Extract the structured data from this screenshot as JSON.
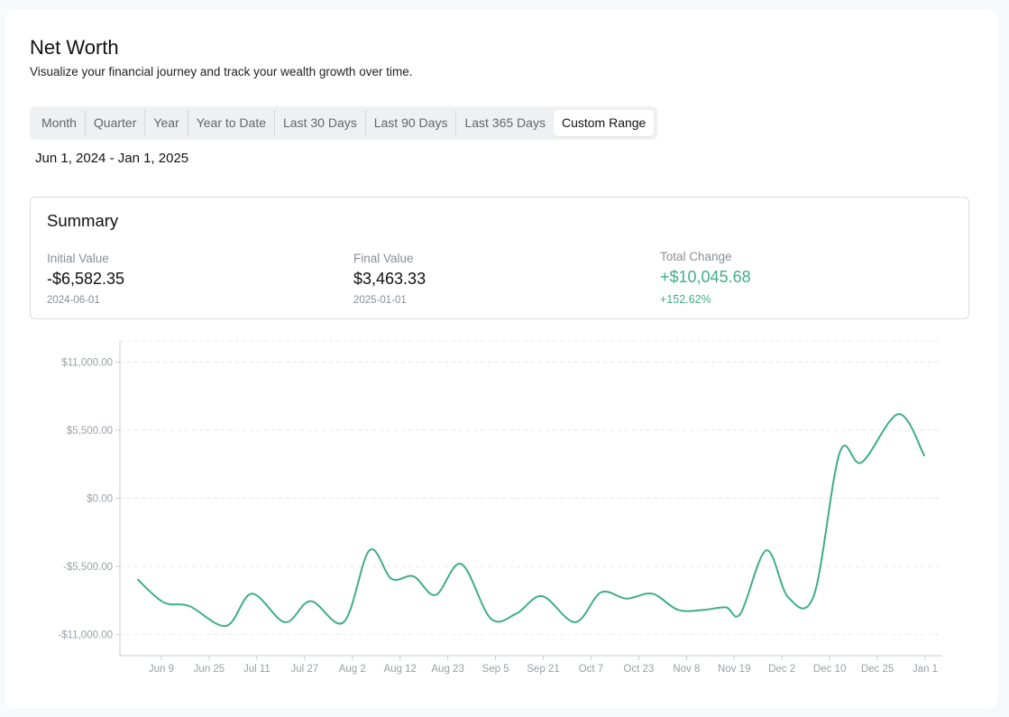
{
  "header": {
    "title": "Net Worth",
    "subtitle": "Visualize your financial journey and track your wealth growth over time."
  },
  "tabs": [
    {
      "label": "Month",
      "active": false
    },
    {
      "label": "Quarter",
      "active": false
    },
    {
      "label": "Year",
      "active": false
    },
    {
      "label": "Year to Date",
      "active": false
    },
    {
      "label": "Last 30 Days",
      "active": false
    },
    {
      "label": "Last 90 Days",
      "active": false
    },
    {
      "label": "Last 365 Days",
      "active": false
    },
    {
      "label": "Custom Range",
      "active": true
    }
  ],
  "date_range": "Jun 1, 2024 - Jan 1, 2025",
  "summary": {
    "title": "Summary",
    "initial": {
      "label": "Initial Value",
      "value": "-$6,582.35",
      "date": "2024-06-01"
    },
    "final": {
      "label": "Final Value",
      "value": "$3,463.33",
      "date": "2025-01-01"
    },
    "change": {
      "label": "Total Change",
      "value": "+$10,045.68",
      "percent": "+152.62%"
    }
  },
  "colors": {
    "accent": "#3fae86"
  },
  "chart_data": {
    "type": "line",
    "yticks": [
      11000,
      5500,
      0,
      -5500,
      -11000
    ],
    "ytick_labels": [
      "$11,000.00",
      "$5,500.00",
      "$0.00",
      "-$5,500.00",
      "-$11,000.00"
    ],
    "ylim": [
      -12700,
      12700
    ],
    "xtick_labels": [
      "Jun 9",
      "Jun 25",
      "Jul 11",
      "Jul 27",
      "Aug 2",
      "Aug 12",
      "Aug 23",
      "Sep 5",
      "Sep 21",
      "Oct 7",
      "Oct 23",
      "Nov 8",
      "Nov 19",
      "Dec 2",
      "Dec 10",
      "Dec 25",
      "Jan 1"
    ],
    "grid": true,
    "series": [
      {
        "values": [
          -6582,
          -8400,
          -8700,
          -10300,
          -7700,
          -10000,
          -8300,
          -10000,
          -4200,
          -6500,
          -6300,
          -7800,
          -5300,
          -9700,
          -9300,
          -7900,
          -10000,
          -7600,
          -8100,
          -7700,
          -9000,
          -9000,
          -8800,
          -9300,
          -4200,
          -8000,
          -7800,
          3700,
          2900,
          6800,
          3463
        ],
        "dates": [
          "2024-06-01",
          "2024-06-08",
          "2024-06-15",
          "2024-06-25",
          "2024-07-02",
          "2024-07-11",
          "2024-07-18",
          "2024-07-27",
          "2024-08-03",
          "2024-08-09",
          "2024-08-15",
          "2024-08-21",
          "2024-08-28",
          "2024-09-05",
          "2024-09-12",
          "2024-09-19",
          "2024-09-28",
          "2024-10-05",
          "2024-10-12",
          "2024-10-19",
          "2024-10-26",
          "2024-11-02",
          "2024-11-08",
          "2024-11-12",
          "2024-11-19",
          "2024-11-25",
          "2024-12-02",
          "2024-12-09",
          "2024-12-15",
          "2024-12-25",
          "2025-01-01"
        ]
      }
    ]
  }
}
